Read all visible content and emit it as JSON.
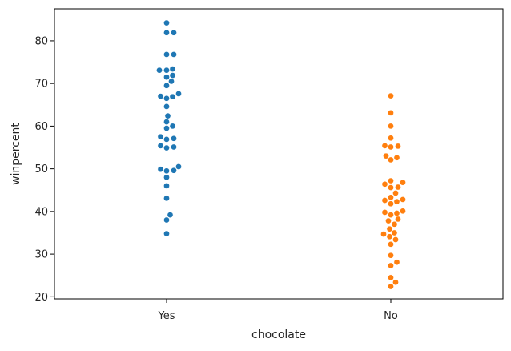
{
  "chart_data": {
    "type": "scatter",
    "kind": "swarm",
    "xlabel": "chocolate",
    "ylabel": "winpercent",
    "categories": [
      "Yes",
      "No"
    ],
    "ylim": [
      19.5,
      87.5
    ],
    "yticks": [
      20,
      30,
      40,
      50,
      60,
      70,
      80
    ],
    "grid": false,
    "series": [
      {
        "name": "Yes",
        "color": "#1f77b4",
        "values": [
          84.2,
          81.9,
          81.9,
          76.8,
          76.8,
          73.4,
          73.1,
          73.1,
          71.9,
          71.5,
          70.5,
          69.5,
          67.6,
          67.0,
          66.9,
          66.5,
          64.6,
          62.4,
          61.0,
          60.0,
          59.5,
          57.5,
          57.1,
          56.9,
          55.4,
          55.1,
          54.9,
          50.5,
          49.9,
          49.6,
          49.5,
          48.0,
          46.0,
          43.1,
          39.2,
          38.0,
          34.8
        ]
      },
      {
        "name": "No",
        "color": "#ff7f0e",
        "values": [
          67.1,
          63.1,
          60.0,
          57.2,
          55.4,
          55.3,
          55.1,
          53.0,
          52.6,
          52.1,
          47.2,
          46.8,
          46.4,
          45.7,
          45.6,
          44.3,
          43.3,
          42.8,
          42.6,
          42.3,
          41.8,
          40.1,
          39.8,
          39.6,
          39.2,
          38.2,
          37.8,
          37.0,
          35.9,
          35.0,
          34.7,
          34.1,
          33.4,
          32.3,
          29.7,
          28.1,
          27.3,
          24.5,
          23.4,
          22.4
        ]
      }
    ]
  }
}
